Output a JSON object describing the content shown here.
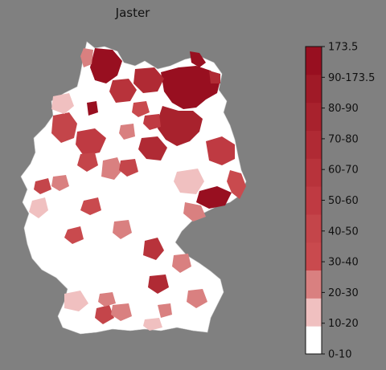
{
  "map": {
    "title": "Jaster",
    "background": "#808080",
    "region_fill_default": "#ffffff",
    "region_stroke": "#bdbdbd"
  },
  "legend": {
    "colors": [
      "#ffffff",
      "#f0c0c0",
      "#d98080",
      "#c94a4e",
      "#c4454a",
      "#bf3a42",
      "#b8333b",
      "#b02a34",
      "#a8222d",
      "#a01a27",
      "#980f20"
    ],
    "ticks": [
      "0-10",
      "10-20",
      "20-30",
      "30-40",
      "40-50",
      "50-60",
      "60-70",
      "70-80",
      "80-90",
      "90-173.5",
      "173.5"
    ]
  }
}
